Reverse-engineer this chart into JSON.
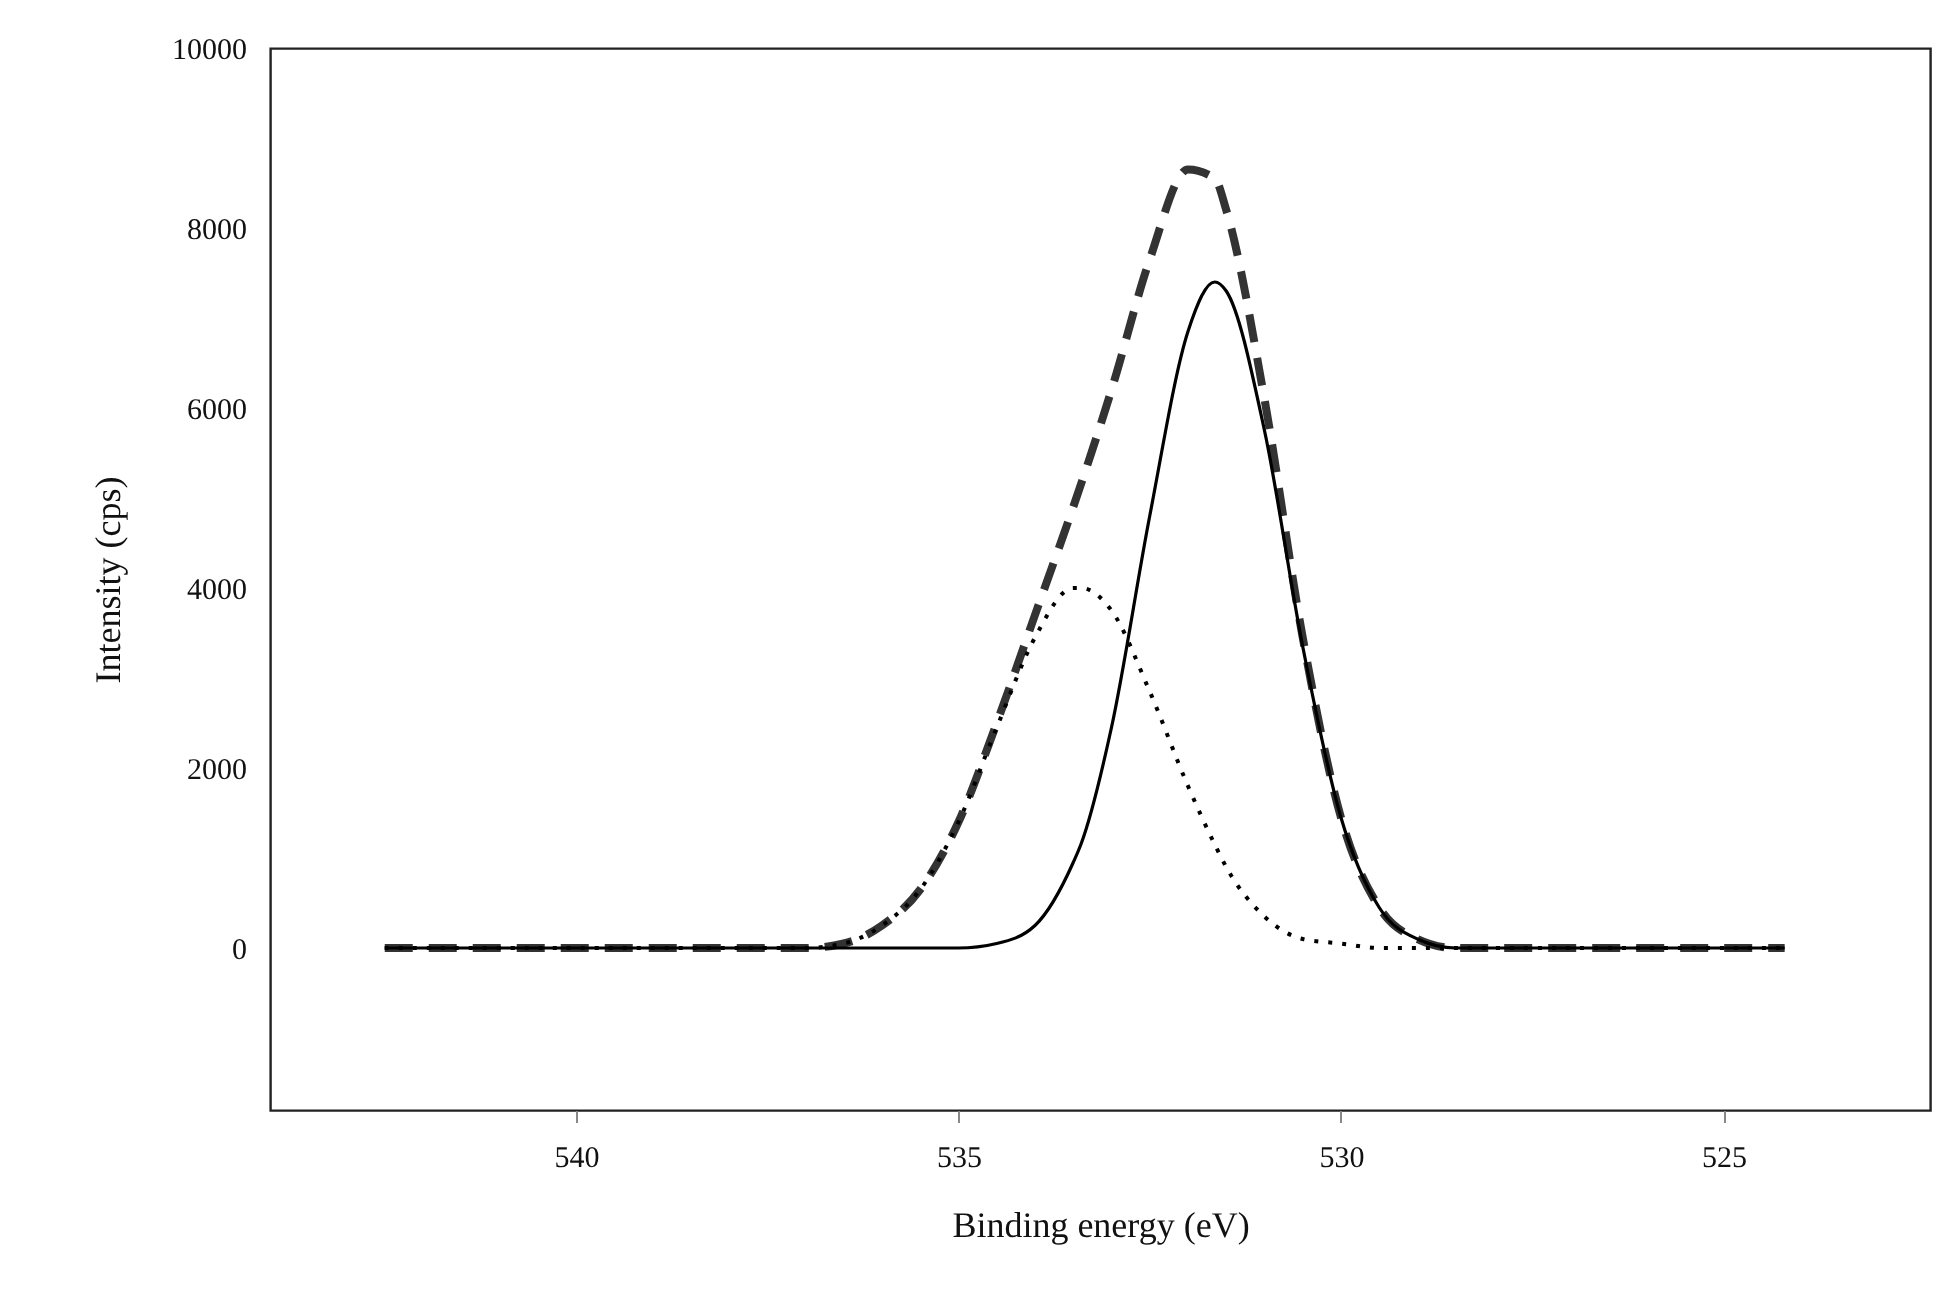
{
  "chart_data": {
    "type": "line",
    "xlabel": "Binding energy (eV)",
    "ylabel": "Intensity (cps)",
    "x": [
      542.5,
      540,
      538,
      537,
      536.5,
      536,
      535.5,
      535,
      534.5,
      534,
      533.5,
      533.4,
      533,
      532.5,
      532,
      531.65,
      531.5,
      531,
      530.5,
      530,
      529.5,
      529,
      528.5,
      528,
      527,
      526,
      524.2
    ],
    "series": [
      {
        "color": "#333333",
        "line_style": "dashed",
        "values": [
          0,
          0,
          0,
          0,
          50,
          250,
          650,
          1400,
          2500,
          3700,
          4900,
          5150,
          6200,
          7650,
          8650,
          8550,
          8200,
          6100,
          3450,
          1450,
          450,
          100,
          0,
          0,
          0,
          0,
          0
        ]
      },
      {
        "color": "#000000",
        "line_style": "solid",
        "values": [
          0,
          0,
          0,
          0,
          0,
          0,
          0,
          0,
          50,
          250,
          950,
          1150,
          2450,
          4800,
          6850,
          7400,
          7300,
          5750,
          3350,
          1450,
          450,
          100,
          0,
          0,
          0,
          0,
          0
        ]
      },
      {
        "color": "#000000",
        "line_style": "dotted",
        "values": [
          0,
          0,
          0,
          0,
          50,
          250,
          650,
          1400,
          2450,
          3450,
          4000,
          4000,
          3750,
          2850,
          1800,
          1150,
          900,
          350,
          100,
          50,
          0,
          0,
          0,
          0,
          0,
          0,
          0
        ]
      }
    ],
    "xlim": [
      544,
      522.3
    ],
    "xticks": [
      540,
      535,
      530,
      525
    ],
    "ylim": [
      -1800,
      10000
    ],
    "yticks": [
      0,
      2000,
      4000,
      6000,
      8000,
      10000
    ],
    "grid": false,
    "marker": "none"
  }
}
